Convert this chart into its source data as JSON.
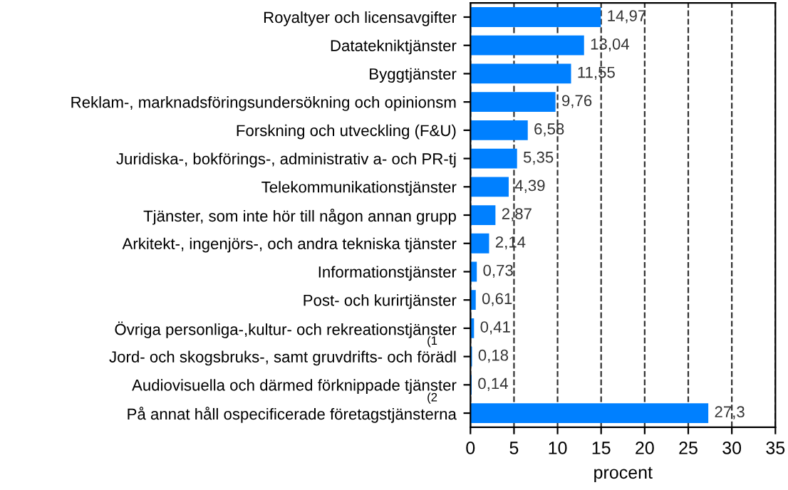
{
  "chart_data": {
    "type": "bar",
    "orientation": "horizontal",
    "xlabel": "procent",
    "categories": [
      "Royaltyer och licensavgifter",
      "Datatekniktjänster",
      "Byggtjänster",
      "Reklam-, marknadsföringsundersökning och opinionsm",
      "Forskning och utveckling (F&U)",
      "Juridiska-, bokförings-, administrativ a- och PR-tj",
      "Telekommunikationstjänster",
      "Tjänster, som inte hör till någon annan grupp",
      "Arkitekt-, ingenjörs-, och andra tekniska tjänster",
      "Informationstjänster",
      "Post- och kurirtjänster",
      "Övriga personliga-,kultur- och rekreationstjänster",
      "Jord- och skogsbruks-, samt gruvdrifts- och förädl",
      "Audiovisuella och därmed förknippade tjänster",
      "På annat håll ospecificerade företagstjänsterna"
    ],
    "values": [
      14.97,
      13.04,
      11.55,
      9.76,
      6.58,
      5.35,
      4.39,
      2.87,
      2.14,
      0.73,
      0.61,
      0.41,
      0.18,
      0.14,
      27.3
    ],
    "value_labels": [
      "14,97",
      "13,04",
      "11,55",
      "9,76",
      "6,58",
      "5,35",
      "4,39",
      "2,87",
      "2,14",
      "0,73",
      "0,61",
      "0,41",
      "0,18",
      "0,14",
      "27,3"
    ],
    "color": "#0080ff",
    "xlim": [
      0,
      35
    ],
    "xticks": [
      0,
      5,
      10,
      15,
      20,
      25,
      30,
      35
    ],
    "grid": "x",
    "line_style": "dashed",
    "annotations": [
      "(1",
      "(2"
    ]
  }
}
